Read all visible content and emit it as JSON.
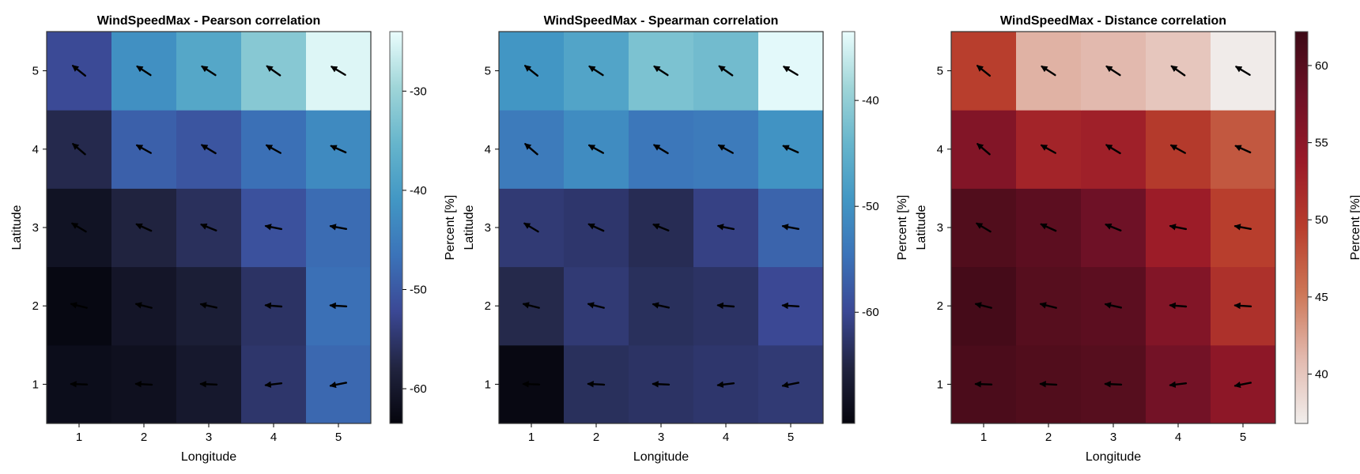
{
  "chart_data": [
    {
      "type": "heatmap",
      "title": "WindSpeedMax - Pearson correlation",
      "xlabel": "Longitude",
      "ylabel": "Latitude",
      "x": [
        1,
        2,
        3,
        4,
        5
      ],
      "y": [
        1,
        2,
        3,
        4,
        5
      ],
      "x_ticks": [
        "1",
        "2",
        "3",
        "4",
        "5"
      ],
      "y_ticks": [
        "1",
        "2",
        "3",
        "4",
        "5"
      ],
      "values": [
        [
          -62.0,
          -61.5,
          -60.0,
          -55.0,
          -48.0
        ],
        [
          -63.0,
          -60.5,
          -59.0,
          -55.5,
          -47.0
        ],
        [
          -61.0,
          -58.0,
          -56.0,
          -51.0,
          -47.5
        ],
        [
          -57.0,
          -49.0,
          -50.5,
          -47.0,
          -43.0
        ],
        [
          -52.0,
          -42.0,
          -38.0,
          -32.0,
          -25.0
        ]
      ],
      "arrows": [
        [
          [
            -1,
            0.03
          ],
          [
            -1,
            0.05
          ],
          [
            -1,
            0.04
          ],
          [
            -1,
            -0.12
          ],
          [
            -1,
            -0.2
          ]
        ],
        [
          [
            -1,
            0.25
          ],
          [
            -1,
            0.25
          ],
          [
            -1,
            0.22
          ],
          [
            -1,
            0.08
          ],
          [
            -1,
            0.06
          ]
        ],
        [
          [
            -1,
            0.6
          ],
          [
            -1,
            0.45
          ],
          [
            -1,
            0.4
          ],
          [
            -1,
            0.2
          ],
          [
            -1,
            0.18
          ]
        ],
        [
          [
            -1,
            0.85
          ],
          [
            -1,
            0.55
          ],
          [
            -1,
            0.6
          ],
          [
            -1,
            0.55
          ],
          [
            -1,
            0.45
          ]
        ],
        [
          [
            -1,
            0.8
          ],
          [
            -1,
            0.65
          ],
          [
            -1,
            0.65
          ],
          [
            -1,
            0.7
          ],
          [
            -1,
            0.6
          ]
        ]
      ],
      "colorbar": {
        "label": "Percent [%]",
        "range": [
          -63.5,
          -24.0
        ],
        "ticks": [
          -60,
          -50,
          -40,
          -30
        ],
        "tick_labels": [
          "-60",
          "-50",
          "-40",
          "-30"
        ],
        "colormap": "ice",
        "stops": [
          "#05050d",
          "#212440",
          "#3b4895",
          "#3b73b9",
          "#4297c4",
          "#66b5cc",
          "#9fd5d8",
          "#eafdfd"
        ]
      }
    },
    {
      "type": "heatmap",
      "title": "WindSpeedMax - Spearman correlation",
      "xlabel": "Longitude",
      "ylabel": "Latitude",
      "x": [
        1,
        2,
        3,
        4,
        5
      ],
      "y": [
        1,
        2,
        3,
        4,
        5
      ],
      "x_ticks": [
        "1",
        "2",
        "3",
        "4",
        "5"
      ],
      "y_ticks": [
        "1",
        "2",
        "3",
        "4",
        "5"
      ],
      "values": [
        [
          -70.0,
          -63.5,
          -63.0,
          -62.5,
          -62.0
        ],
        [
          -64.5,
          -62.0,
          -63.5,
          -63.0,
          -60.0
        ],
        [
          -62.0,
          -62.5,
          -64.0,
          -61.0,
          -56.5
        ],
        [
          -53.5,
          -51.0,
          -54.0,
          -53.5,
          -50.0
        ],
        [
          -49.5,
          -47.0,
          -42.0,
          -43.0,
          -34.0
        ]
      ],
      "arrows": [
        [
          [
            -1,
            0.03
          ],
          [
            -1,
            0.05
          ],
          [
            -1,
            0.04
          ],
          [
            -1,
            -0.12
          ],
          [
            -1,
            -0.2
          ]
        ],
        [
          [
            -1,
            0.25
          ],
          [
            -1,
            0.25
          ],
          [
            -1,
            0.22
          ],
          [
            -1,
            0.08
          ],
          [
            -1,
            0.06
          ]
        ],
        [
          [
            -1,
            0.6
          ],
          [
            -1,
            0.45
          ],
          [
            -1,
            0.4
          ],
          [
            -1,
            0.2
          ],
          [
            -1,
            0.18
          ]
        ],
        [
          [
            -1,
            0.85
          ],
          [
            -1,
            0.55
          ],
          [
            -1,
            0.6
          ],
          [
            -1,
            0.55
          ],
          [
            -1,
            0.45
          ]
        ],
        [
          [
            -1,
            0.8
          ],
          [
            -1,
            0.65
          ],
          [
            -1,
            0.65
          ],
          [
            -1,
            0.7
          ],
          [
            -1,
            0.6
          ]
        ]
      ],
      "colorbar": {
        "label": "Percent [%]",
        "range": [
          -70.5,
          -33.5
        ],
        "ticks": [
          -60,
          -50,
          -40
        ],
        "tick_labels": [
          "-60",
          "-50",
          "-40"
        ],
        "colormap": "ice",
        "stops": [
          "#05050d",
          "#212440",
          "#3b4895",
          "#3b73b9",
          "#4297c4",
          "#66b5cc",
          "#9fd5d8",
          "#eafdfd"
        ]
      }
    },
    {
      "type": "heatmap",
      "title": "WindSpeedMax - Distance correlation",
      "xlabel": "Longitude",
      "ylabel": "Latitude",
      "x": [
        1,
        2,
        3,
        4,
        5
      ],
      "y": [
        1,
        2,
        3,
        4,
        5
      ],
      "x_ticks": [
        "1",
        "2",
        "3",
        "4",
        "5"
      ],
      "y_ticks": [
        "1",
        "2",
        "3",
        "4",
        "5"
      ],
      "values": [
        [
          61.0,
          60.5,
          60.0,
          57.5,
          55.0
        ],
        [
          61.5,
          60.0,
          59.5,
          56.0,
          51.0
        ],
        [
          60.5,
          59.5,
          58.0,
          53.5,
          49.5
        ],
        [
          56.0,
          52.5,
          53.0,
          50.0,
          47.5
        ],
        [
          49.5,
          41.5,
          41.0,
          40.0,
          37.0
        ]
      ],
      "arrows": [
        [
          [
            -1,
            0.03
          ],
          [
            -1,
            0.05
          ],
          [
            -1,
            0.04
          ],
          [
            -1,
            -0.12
          ],
          [
            -1,
            -0.2
          ]
        ],
        [
          [
            -1,
            0.25
          ],
          [
            -1,
            0.25
          ],
          [
            -1,
            0.22
          ],
          [
            -1,
            0.08
          ],
          [
            -1,
            0.06
          ]
        ],
        [
          [
            -1,
            0.6
          ],
          [
            -1,
            0.45
          ],
          [
            -1,
            0.4
          ],
          [
            -1,
            0.2
          ],
          [
            -1,
            0.18
          ]
        ],
        [
          [
            -1,
            0.85
          ],
          [
            -1,
            0.55
          ],
          [
            -1,
            0.6
          ],
          [
            -1,
            0.55
          ],
          [
            -1,
            0.45
          ]
        ],
        [
          [
            -1,
            0.8
          ],
          [
            -1,
            0.65
          ],
          [
            -1,
            0.65
          ],
          [
            -1,
            0.7
          ],
          [
            -1,
            0.6
          ]
        ]
      ],
      "colorbar": {
        "label": "Percent [%]",
        "range": [
          36.8,
          62.2
        ],
        "ticks": [
          40,
          45,
          50,
          55,
          60
        ],
        "tick_labels": [
          "40",
          "45",
          "50",
          "55",
          "60"
        ],
        "colormap": "amp",
        "stops": [
          "#f1eeec",
          "#e2b9ae",
          "#cd7656",
          "#b83e2d",
          "#9a1a28",
          "#6e1126",
          "#3d0a16"
        ]
      }
    }
  ]
}
